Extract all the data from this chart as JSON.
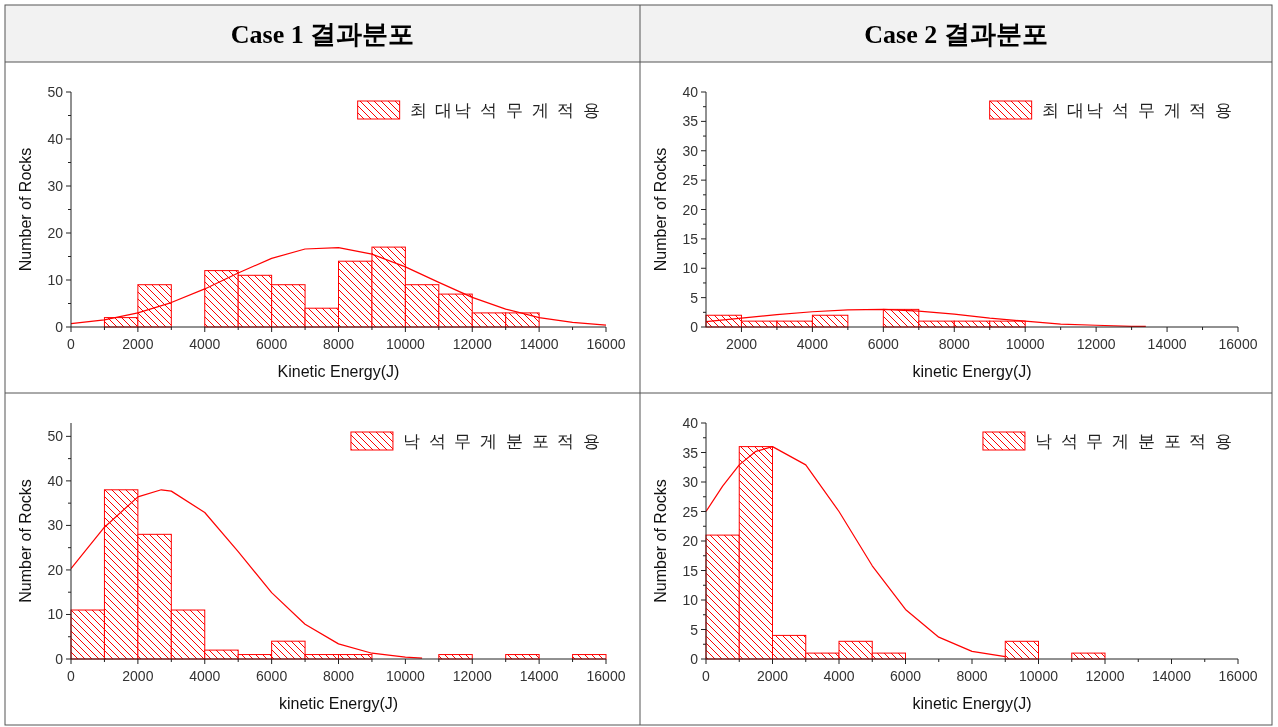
{
  "chart_data": [
    {
      "type": "histogram",
      "title": "Case 1 결과분포",
      "xlabel": "Kinetic Energy(J)",
      "ylabel": "Number of Rocks",
      "xlim": [
        0,
        16000
      ],
      "xticks": [
        0,
        2000,
        4000,
        6000,
        8000,
        10000,
        12000,
        14000,
        16000
      ],
      "ylim": [
        0,
        50
      ],
      "yticks": [
        0,
        10,
        20,
        30,
        40,
        50
      ],
      "legend": "top right",
      "series": [
        {
          "name": "최 대낙 석 무 게 적 용",
          "color": "#ff0000",
          "bins": [
            1000,
            2000,
            3000,
            4000,
            5000,
            6000,
            7000,
            8000,
            9000,
            10000,
            11000,
            12000,
            13000,
            14000
          ],
          "values": [
            2,
            9,
            0,
            12,
            11,
            9,
            4,
            14,
            17,
            9,
            7,
            3,
            3
          ]
        },
        {
          "type": "line",
          "color": "#ff0000",
          "x": [
            0,
            1000,
            2000,
            3000,
            4000,
            5000,
            6000,
            7000,
            8000,
            9000,
            10000,
            11000,
            12000,
            13000,
            14000,
            15000,
            16000
          ],
          "values": [
            0.7,
            1.5,
            3,
            5.2,
            8.1,
            11.5,
            14.6,
            16.6,
            16.9,
            15.5,
            12.8,
            9.5,
            6.3,
            3.8,
            2,
            1,
            0.4
          ]
        }
      ]
    },
    {
      "type": "histogram",
      "title": "Case 2 결과분포",
      "xlabel": "kinetic Energy(J)",
      "ylabel": "Number of Rocks",
      "xlim": [
        1000,
        16000
      ],
      "xticks": [
        2000,
        4000,
        6000,
        8000,
        10000,
        12000,
        14000,
        16000
      ],
      "ylim": [
        0,
        40
      ],
      "yticks": [
        0,
        5,
        10,
        15,
        20,
        25,
        30,
        35,
        40
      ],
      "legend": "top right",
      "series": [
        {
          "name": "최 대낙 석 무 게 적 용",
          "color": "#ff0000",
          "bins": [
            1000,
            2000,
            3000,
            4000,
            5000,
            6000,
            7000,
            8000,
            9000,
            10000
          ],
          "values": [
            2,
            1,
            1,
            2,
            0,
            3,
            1,
            1,
            1
          ]
        },
        {
          "type": "line",
          "color": "#ff0000",
          "x": [
            1000,
            2000,
            3000,
            4000,
            5000,
            6000,
            7000,
            8000,
            9000,
            10000,
            11000,
            12000,
            13000,
            13400
          ],
          "values": [
            0.9,
            1.5,
            2.1,
            2.6,
            2.9,
            3,
            2.7,
            2.2,
            1.5,
            1,
            0.5,
            0.3,
            0.1,
            0.1
          ]
        }
      ]
    },
    {
      "type": "histogram",
      "xlabel": "kinetic Energy(J)",
      "ylabel": "Number of Rocks",
      "xlim": [
        0,
        16000
      ],
      "xticks": [
        0,
        2000,
        4000,
        6000,
        8000,
        10000,
        12000,
        14000,
        16000
      ],
      "ylim": [
        0,
        53
      ],
      "yticks": [
        0,
        10,
        20,
        30,
        40,
        50
      ],
      "legend": "top right",
      "series": [
        {
          "name": "낙 석 무 게 분 포 적 용",
          "color": "#ff0000",
          "bins": [
            0,
            1000,
            2000,
            3000,
            4000,
            5000,
            6000,
            7000,
            8000,
            9000,
            10000,
            11000,
            12000,
            13000,
            14000,
            15000,
            16000
          ],
          "values": [
            11,
            38,
            28,
            11,
            2,
            1,
            4,
            1,
            1,
            0,
            0,
            1,
            0,
            1,
            0,
            1
          ]
        },
        {
          "type": "line",
          "color": "#ff0000",
          "x": [
            0,
            1000,
            2000,
            2700,
            3000,
            4000,
            5000,
            6000,
            7000,
            8000,
            9000,
            10000,
            10500
          ],
          "values": [
            20.3,
            29.6,
            36.4,
            38,
            37.7,
            32.9,
            24.1,
            14.9,
            7.8,
            3.4,
            1.3,
            0.4,
            0.2
          ]
        }
      ]
    },
    {
      "type": "histogram",
      "xlabel": "kinetic Energy(J)",
      "ylabel": "Number of Rocks",
      "xlim": [
        0,
        16000
      ],
      "xticks": [
        0,
        2000,
        4000,
        6000,
        8000,
        10000,
        12000,
        14000,
        16000
      ],
      "ylim": [
        0,
        40
      ],
      "yticks": [
        0,
        5,
        10,
        15,
        20,
        25,
        30,
        35,
        40
      ],
      "legend": "top right",
      "series": [
        {
          "name": "낙 석 무 게 분 포 적 용",
          "color": "#ff0000",
          "bins": [
            0,
            1000,
            2000,
            3000,
            4000,
            5000,
            6000,
            7000,
            8000,
            9000,
            10000,
            11000,
            12000
          ],
          "values": [
            21,
            36,
            4,
            1,
            3,
            1,
            0,
            0,
            0,
            3,
            0,
            1
          ]
        },
        {
          "type": "line",
          "color": "#ff0000",
          "x": [
            0,
            500,
            1000,
            1500,
            2000,
            3000,
            4000,
            5000,
            6000,
            7000,
            8000,
            9000
          ],
          "values": [
            25,
            29.3,
            32.9,
            35.2,
            36,
            32.9,
            25,
            15.8,
            8.4,
            3.7,
            1.3,
            0.4
          ]
        }
      ]
    }
  ]
}
